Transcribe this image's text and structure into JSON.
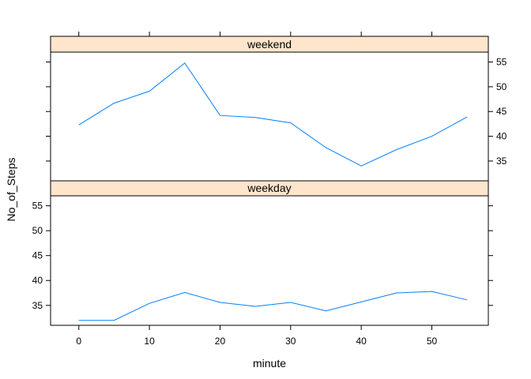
{
  "chart_data": {
    "type": "line",
    "xlabel": "minute",
    "ylabel": "No_of_Steps",
    "xlim": [
      -4,
      58
    ],
    "ylim": [
      31,
      57
    ],
    "x_ticks": [
      0,
      10,
      20,
      30,
      40,
      50
    ],
    "y_ticks": [
      35,
      40,
      45,
      50,
      55
    ],
    "panels": [
      {
        "strip": "weekend",
        "y_axis_side": "right",
        "x": [
          0,
          5,
          10,
          15,
          20,
          25,
          30,
          35,
          40,
          45,
          50,
          55
        ],
        "values": [
          42.3,
          46.7,
          49.1,
          54.8,
          44.2,
          43.8,
          42.7,
          37.7,
          34.0,
          37.3,
          40.0,
          43.9
        ]
      },
      {
        "strip": "weekday",
        "y_axis_side": "left",
        "x": [
          0,
          5,
          10,
          15,
          20,
          25,
          30,
          35,
          40,
          45,
          50,
          55
        ],
        "values": [
          32.0,
          32.0,
          35.4,
          37.6,
          35.6,
          34.8,
          35.6,
          33.9,
          35.7,
          37.5,
          37.8,
          36.1
        ]
      }
    ]
  }
}
